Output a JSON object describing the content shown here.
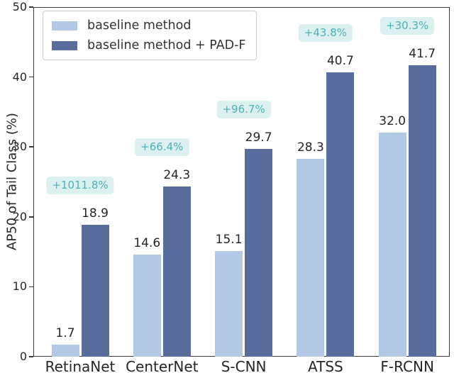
{
  "chart_data": {
    "type": "bar",
    "title": "",
    "xlabel": "",
    "ylabel": "AP50 of Tail Class (%)",
    "ylim": [
      0,
      50
    ],
    "yticks": [
      0,
      10,
      20,
      30,
      40,
      50
    ],
    "grid": false,
    "legend_position": "upper-left",
    "categories": [
      "RetinaNet",
      "CenterNet",
      "S-CNN",
      "ATSS",
      "F-RCNN"
    ],
    "series": [
      {
        "name": "baseline method",
        "color": "#b2c8e4",
        "values": [
          1.7,
          14.6,
          15.1,
          28.3,
          32.0
        ]
      },
      {
        "name": "baseline method + PAD-F",
        "color": "#586d9b",
        "values": [
          18.9,
          24.3,
          29.7,
          40.7,
          41.7
        ]
      }
    ],
    "improvement_labels": [
      "+1011.8%",
      "+66.4%",
      "+96.7%",
      "+43.8%",
      "+30.3%"
    ],
    "annotation_text_color": "#4bb2b5",
    "annotation_bg_color": "#dcf0f0",
    "axis_color": "#3a3a3a",
    "text_color": "#262626"
  }
}
